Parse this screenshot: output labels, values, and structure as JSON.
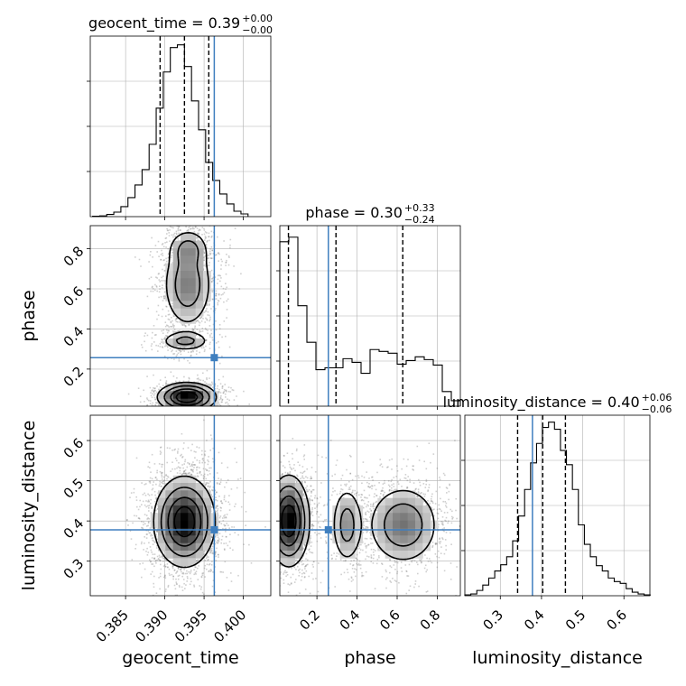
{
  "figure": {
    "type": "corner",
    "truth_color": "#3f7fbf"
  },
  "chart_data": [
    {
      "type": "histogram",
      "parameter": "geocent_time",
      "title": {
        "main": "geocent_time = 0.39",
        "sup": "+0.00",
        "sub": "−0.00"
      },
      "bins": [
        0.3808,
        0.3817,
        0.3826,
        0.3835,
        0.3844,
        0.3853,
        0.3862,
        0.3871,
        0.388,
        0.3889,
        0.3898,
        0.3907,
        0.3916,
        0.3925,
        0.3934,
        0.3943,
        0.3952,
        0.3961,
        0.397,
        0.3979,
        0.3988,
        0.3997,
        0.4006
      ],
      "counts": [
        0.2,
        0.4,
        1.2,
        2.5,
        5.5,
        10.5,
        17.5,
        26,
        40,
        60,
        80,
        93.5,
        95,
        83,
        64,
        48,
        30,
        20,
        12.5,
        7,
        3,
        1.5
      ],
      "quantiles": [
        0.3894,
        0.3925,
        0.3956
      ],
      "truth": 0.3963,
      "xlim": [
        0.3805,
        0.4035
      ],
      "ylim": [
        0,
        96
      ],
      "xticks": [
        0.385,
        0.39,
        0.395,
        0.4
      ],
      "xticklabels": [
        "0.385",
        "0.390",
        "0.395",
        "0.400"
      ],
      "xlabel": "geocent_time"
    },
    {
      "type": "histogram",
      "parameter": "phase",
      "title": {
        "main": "phase = 0.30",
        "sup": "+0.33",
        "sub": "−0.24"
      },
      "bins": [
        0.015,
        0.06,
        0.105,
        0.15,
        0.195,
        0.24,
        0.285,
        0.33,
        0.375,
        0.42,
        0.465,
        0.51,
        0.555,
        0.6,
        0.645,
        0.69,
        0.735,
        0.78,
        0.825,
        0.87,
        0.915
      ],
      "counts": [
        90,
        92.5,
        55,
        35,
        20,
        21,
        21,
        26,
        24,
        18,
        31,
        30,
        29,
        23,
        25,
        27,
        25.5,
        22.5,
        8,
        3
      ],
      "quantiles": [
        0.058,
        0.295,
        0.628
      ],
      "truth": 0.257,
      "xlim": [
        0.015,
        0.915
      ],
      "ylim": [
        0,
        95
      ],
      "xticks": [
        0.2,
        0.4,
        0.6,
        0.8
      ],
      "xticklabels": [
        "0.2",
        "0.4",
        "0.6",
        "0.8"
      ],
      "xlabel": "phase"
    },
    {
      "type": "histogram",
      "parameter": "luminosity_distance",
      "title": {
        "main": "luminosity_distance = 0.40",
        "sup": "+0.06",
        "sub": "−0.06"
      },
      "bins": [
        0.214,
        0.2285,
        0.243,
        0.2575,
        0.272,
        0.2865,
        0.301,
        0.3155,
        0.33,
        0.3445,
        0.359,
        0.3735,
        0.388,
        0.4025,
        0.417,
        0.4315,
        0.446,
        0.4605,
        0.475,
        0.4895,
        0.504,
        0.5185,
        0.533,
        0.5475,
        0.562,
        0.5765,
        0.591,
        0.6055,
        0.62,
        0.6345,
        0.649,
        0.6635
      ],
      "counts": [
        0.5,
        1,
        3,
        6,
        10,
        14,
        17.5,
        22,
        31,
        45,
        60,
        75,
        86,
        95,
        98,
        94,
        82,
        74,
        60,
        40,
        29,
        22,
        17,
        14,
        10,
        8,
        7,
        4,
        2,
        1,
        0.5
      ],
      "quantiles": [
        0.342,
        0.403,
        0.458
      ],
      "truth": 0.378,
      "xlim": [
        0.214,
        0.663
      ],
      "ylim": [
        0,
        98
      ],
      "xticks": [
        0.3,
        0.4,
        0.5,
        0.6
      ],
      "xticklabels": [
        "0.3",
        "0.4",
        "0.5",
        "0.6"
      ],
      "xlabel": "luminosity_distance"
    },
    {
      "type": "contour",
      "x": "geocent_time",
      "y": "phase",
      "xlim": [
        0.3805,
        0.4035
      ],
      "ylim": [
        0.015,
        0.915
      ],
      "yticks": [
        0.2,
        0.4,
        0.6,
        0.8
      ],
      "yticklabels": [
        "0.2",
        "0.4",
        "0.6",
        "0.8"
      ],
      "ylabel": "phase",
      "truth": [
        0.3963,
        0.257
      ],
      "blobs": [
        {
          "cx": 0.3928,
          "cy": 0.06,
          "sx": 0.0018,
          "sy": 0.035,
          "w": 1.0
        },
        {
          "cx": 0.3926,
          "cy": 0.34,
          "sx": 0.0016,
          "sy": 0.025,
          "w": 0.35
        },
        {
          "cx": 0.3929,
          "cy": 0.62,
          "sx": 0.0016,
          "sy": 0.11,
          "w": 0.45
        },
        {
          "cx": 0.393,
          "cy": 0.8,
          "sx": 0.0013,
          "sy": 0.05,
          "w": 0.3
        }
      ]
    },
    {
      "type": "contour",
      "x": "geocent_time",
      "y": "luminosity_distance",
      "xlim": [
        0.3805,
        0.4035
      ],
      "ylim": [
        0.214,
        0.663
      ],
      "xticks": [
        0.385,
        0.39,
        0.395,
        0.4
      ],
      "yticks": [
        0.3,
        0.4,
        0.5,
        0.6
      ],
      "yticklabels": [
        "0.3",
        "0.4",
        "0.5",
        "0.6"
      ],
      "ylabel": "luminosity_distance",
      "truth": [
        0.3963,
        0.378
      ],
      "blobs": [
        {
          "cx": 0.3925,
          "cy": 0.398,
          "sx": 0.0019,
          "sy": 0.055,
          "w": 1.0
        }
      ]
    },
    {
      "type": "contour",
      "x": "phase",
      "y": "luminosity_distance",
      "xlim": [
        0.015,
        0.915
      ],
      "ylim": [
        0.214,
        0.663
      ],
      "xticks": [
        0.2,
        0.4,
        0.6,
        0.8
      ],
      "yticks": [
        0.3,
        0.4,
        0.5,
        0.6
      ],
      "truth": [
        0.257,
        0.378
      ],
      "blobs": [
        {
          "cx": 0.06,
          "cy": 0.4,
          "sx": 0.05,
          "sy": 0.055,
          "w": 1.0
        },
        {
          "cx": 0.35,
          "cy": 0.39,
          "sx": 0.04,
          "sy": 0.05,
          "w": 0.4
        },
        {
          "cx": 0.63,
          "cy": 0.39,
          "sx": 0.09,
          "sy": 0.05,
          "w": 0.5
        }
      ]
    }
  ]
}
